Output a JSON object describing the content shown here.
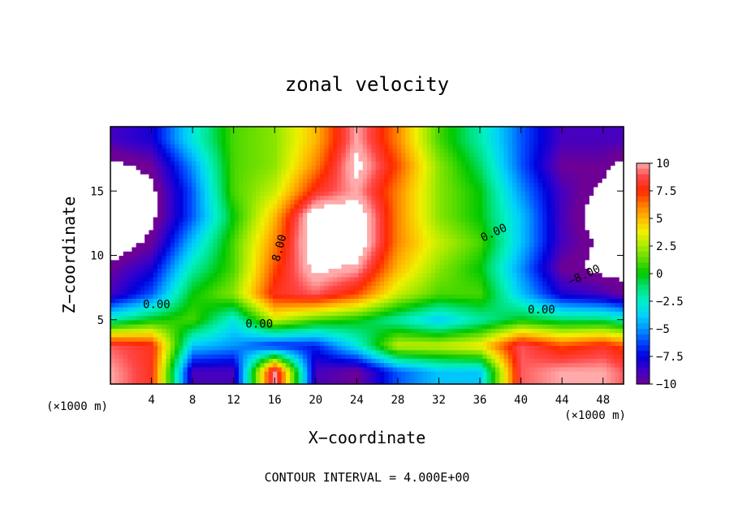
{
  "chart_data": {
    "type": "heatmap",
    "title": "zonal velocity",
    "xlabel": "X−coordinate",
    "ylabel": "Z−coordinate",
    "x_unit_left": "(×1000 m)",
    "x_unit_right": "(×1000 m)",
    "footer": "CONTOUR INTERVAL = 4.000E+00",
    "xlim": [
      0,
      50
    ],
    "ylim": [
      0,
      20
    ],
    "x_ticks": [
      4,
      8,
      12,
      16,
      20,
      24,
      28,
      32,
      36,
      40,
      44,
      48
    ],
    "y_ticks": [
      5,
      10,
      15
    ],
    "colorbar": {
      "ticks": [
        10,
        7.5,
        5,
        2.5,
        0,
        -2.5,
        -5,
        -7.5,
        -10
      ],
      "tick_labels": [
        "10",
        "7.5",
        "5",
        "2.5",
        "0",
        "−2.5",
        "−5",
        "−7.5",
        "−10"
      ]
    },
    "contour_labels": [
      "0.00",
      "0.00",
      "0.00",
      "0.00",
      "8.00",
      "−8.00"
    ],
    "x": [
      0,
      4,
      8,
      12,
      16,
      20,
      24,
      28,
      32,
      36,
      40,
      44,
      48,
      50
    ],
    "z": [
      1,
      3,
      5,
      7,
      9,
      11,
      13,
      15,
      17,
      19
    ],
    "values": [
      [
        10,
        8,
        -9,
        -9,
        10,
        -9,
        -10,
        -6,
        -4,
        -4,
        9,
        10,
        10,
        9
      ],
      [
        9,
        8,
        -4,
        -5,
        -7,
        -7,
        -3,
        3,
        3,
        4,
        9,
        7,
        8,
        7
      ],
      [
        -2,
        0,
        1,
        -3,
        3,
        1,
        0,
        -2,
        -4,
        -2,
        0,
        -1,
        -1,
        -2
      ],
      [
        -9,
        -6,
        0,
        2,
        8,
        9,
        7,
        3,
        1,
        1,
        -4,
        -8,
        -9,
        -10
      ],
      [
        -10,
        -8,
        -2,
        1,
        7,
        11,
        10,
        5,
        2,
        0,
        -5,
        -10,
        -11,
        -11
      ],
      [
        -12,
        -10,
        -4,
        1,
        6,
        12,
        12,
        6,
        3,
        1,
        -4,
        -9,
        -11,
        -12
      ],
      [
        -12,
        -11,
        -6,
        0,
        5,
        12,
        12,
        6,
        2,
        0,
        -4,
        -9,
        -12,
        -12
      ],
      [
        -12,
        -11,
        -6,
        1,
        3,
        8,
        10,
        6,
        2,
        0,
        -5,
        -9,
        -11,
        -12
      ],
      [
        -11,
        -10,
        -5,
        1,
        2,
        6,
        11,
        7,
        2,
        -1,
        -6,
        -10,
        -10,
        -11
      ],
      [
        -9,
        -8,
        -3,
        1,
        2,
        5,
        10,
        6,
        1,
        -2,
        -6,
        -9,
        -9,
        -9
      ]
    ],
    "grid": false,
    "legend": "right"
  }
}
